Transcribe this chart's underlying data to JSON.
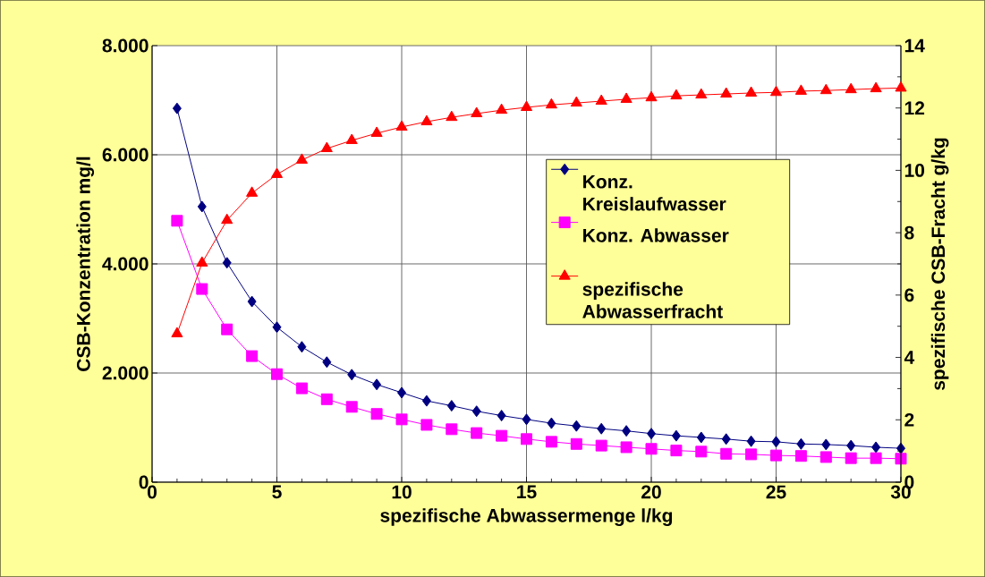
{
  "chart_data": {
    "type": "line",
    "xlabel": "spezifische Abwassermenge l/kg",
    "ylabel": "CSB-Konzentration mg/l",
    "y2label": "spezifische CSB-Fracht g/kg",
    "x": [
      1,
      2,
      3,
      4,
      5,
      6,
      7,
      8,
      9,
      10,
      11,
      12,
      13,
      14,
      15,
      16,
      17,
      18,
      19,
      20,
      21,
      22,
      23,
      24,
      25,
      26,
      27,
      28,
      29,
      30
    ],
    "series": [
      {
        "name": "Konz. Kreislaufwasser",
        "color": "#000080",
        "marker": "diamond",
        "values": [
          6850,
          5050,
          4020,
          3310,
          2840,
          2480,
          2200,
          1970,
          1790,
          1640,
          1490,
          1400,
          1300,
          1220,
          1150,
          1080,
          1030,
          980,
          940,
          890,
          850,
          820,
          790,
          750,
          740,
          700,
          690,
          670,
          640,
          620
        ]
      },
      {
        "name": "Konz. Abwasser",
        "color": "#ff00ff",
        "marker": "square",
        "values": [
          4790,
          3540,
          2800,
          2310,
          1980,
          1720,
          1520,
          1380,
          1250,
          1150,
          1050,
          970,
          900,
          850,
          790,
          740,
          700,
          670,
          640,
          610,
          580,
          560,
          520,
          510,
          490,
          480,
          460,
          440,
          440,
          430
        ]
      },
      {
        "name": "spezifische Abwasserfracht",
        "color": "#ff0000",
        "marker": "triangle",
        "axis": "y2",
        "values": [
          4.76,
          7.03,
          8.4,
          9.27,
          9.87,
          10.33,
          10.7,
          10.96,
          11.19,
          11.39,
          11.56,
          11.7,
          11.82,
          11.93,
          12.02,
          12.1,
          12.16,
          12.22,
          12.28,
          12.33,
          12.39,
          12.42,
          12.45,
          12.48,
          12.5,
          12.54,
          12.56,
          12.59,
          12.62,
          12.64
        ]
      }
    ],
    "xlim": [
      0,
      30
    ],
    "xticks": [
      0,
      5,
      10,
      15,
      20,
      25,
      30
    ],
    "ylim": [
      0,
      8000
    ],
    "yticks": [
      0,
      {
        "value": 2000,
        "label": "2.000"
      },
      {
        "value": 4000,
        "label": "4.000"
      },
      {
        "value": 6000,
        "label": "6.000"
      },
      {
        "value": 8000,
        "label": "8.000"
      }
    ],
    "y2lim": [
      0,
      14
    ],
    "y2ticks": [
      0,
      2,
      4,
      6,
      8,
      10,
      12,
      14
    ],
    "grid": true,
    "legend": "right"
  }
}
